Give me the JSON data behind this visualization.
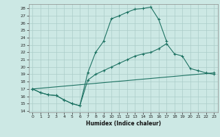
{
  "xlabel": "Humidex (Indice chaleur)",
  "bg_color": "#cce8e4",
  "line_color": "#1a7060",
  "grid_color": "#aaccc8",
  "xlim": [
    -0.5,
    23.5
  ],
  "ylim": [
    13.8,
    28.6
  ],
  "xticks": [
    0,
    1,
    2,
    3,
    4,
    5,
    6,
    7,
    8,
    9,
    10,
    11,
    12,
    13,
    14,
    15,
    16,
    17,
    18,
    19,
    20,
    21,
    22,
    23
  ],
  "yticks": [
    14,
    15,
    16,
    17,
    18,
    19,
    20,
    21,
    22,
    23,
    24,
    25,
    26,
    27,
    28
  ],
  "curve1_x": [
    0,
    1,
    2,
    3,
    4,
    5,
    6,
    7,
    8,
    9,
    10,
    11,
    12,
    13,
    14,
    15,
    16,
    17
  ],
  "curve1_y": [
    17.0,
    16.5,
    16.2,
    16.1,
    15.5,
    15.0,
    14.7,
    19.2,
    22.0,
    23.5,
    26.6,
    27.0,
    27.5,
    27.9,
    28.0,
    28.2,
    26.5,
    23.5
  ],
  "curve2_x": [
    0,
    1,
    2,
    3,
    4,
    5,
    6,
    7,
    8,
    9,
    10,
    11,
    12,
    13,
    14,
    15,
    16,
    17,
    18,
    19,
    20,
    21,
    22,
    23
  ],
  "curve2_y": [
    17.0,
    16.5,
    16.2,
    16.1,
    15.5,
    15.0,
    14.7,
    18.2,
    19.0,
    19.5,
    20.0,
    20.5,
    21.0,
    21.5,
    21.8,
    22.0,
    22.5,
    23.2,
    21.8,
    21.5,
    19.8,
    19.5,
    19.2,
    19.0
  ],
  "curve3_x": [
    0,
    23
  ],
  "curve3_y": [
    17.0,
    19.2
  ]
}
